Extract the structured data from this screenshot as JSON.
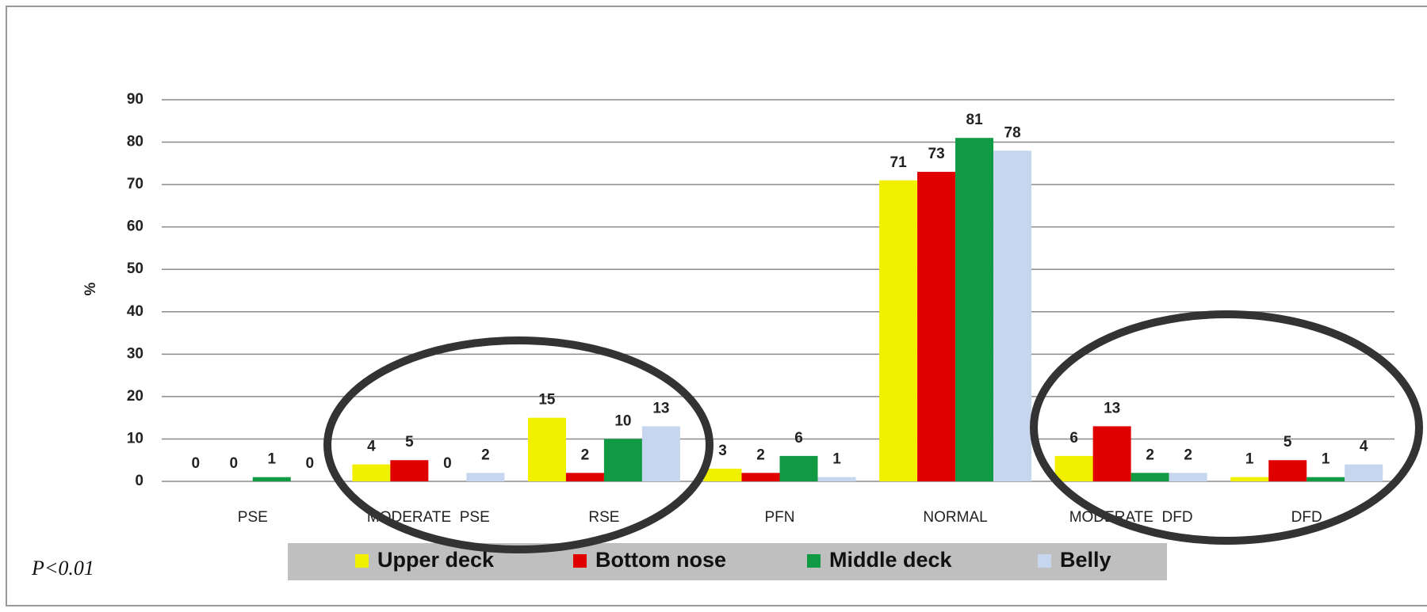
{
  "chart_data": {
    "type": "bar",
    "y_label": "%",
    "annotation": "P<0.01",
    "categories": [
      "PSE",
      "MODERATE  PSE",
      "RSE",
      "PFN",
      "NORMAL",
      "MODERATE  DFD",
      "DFD"
    ],
    "series": [
      {
        "name": "Upper deck",
        "color": "#f0f000",
        "values": [
          0,
          4,
          15,
          3,
          71,
          6,
          1
        ]
      },
      {
        "name": "Bottom nose",
        "color": "#e00000",
        "values": [
          0,
          5,
          2,
          2,
          73,
          13,
          5
        ]
      },
      {
        "name": "Middle deck",
        "color": "#119a44",
        "values": [
          1,
          0,
          10,
          6,
          81,
          2,
          1
        ]
      },
      {
        "name": "Belly",
        "color": "#c6d6ef",
        "values": [
          0,
          2,
          13,
          1,
          78,
          2,
          4
        ]
      }
    ],
    "ylim": [
      0,
      90
    ],
    "yticks": [
      0,
      10,
      20,
      30,
      40,
      50,
      60,
      70,
      80,
      90
    ],
    "grid": true
  }
}
